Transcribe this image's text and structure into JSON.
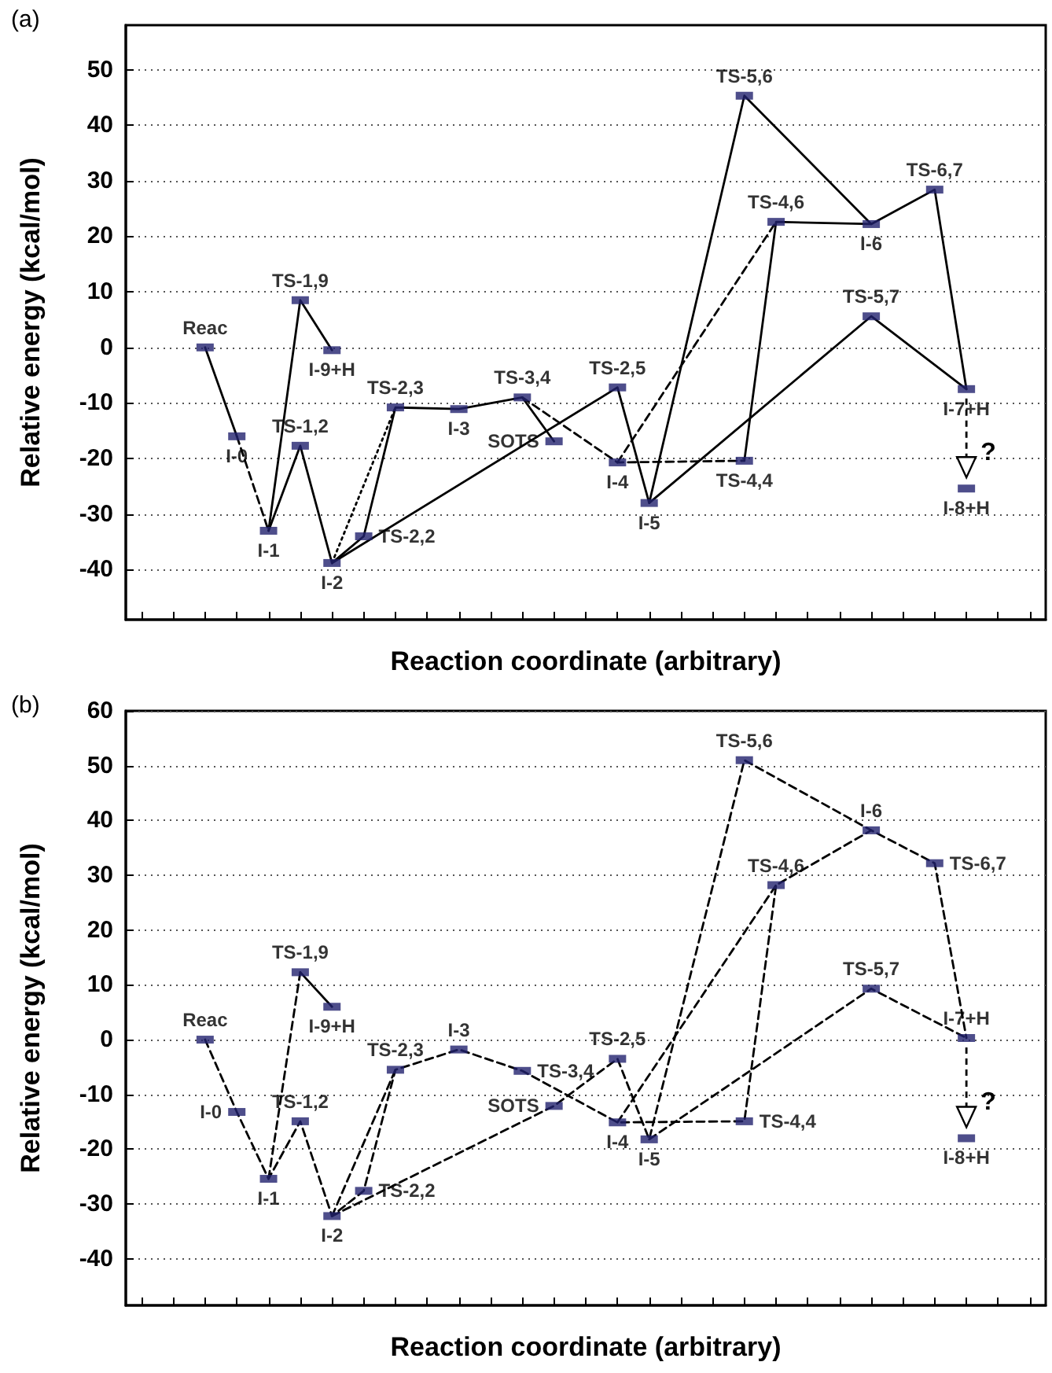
{
  "chart_data": [
    {
      "type": "scatter",
      "title": "(a)",
      "xlabel": "Reaction coordinate (arbitrary)",
      "ylabel": "Relative energy (kcal/mol)",
      "categories": [
        null,
        null,
        null,
        null,
        null,
        null,
        null,
        null,
        null,
        null,
        null,
        null,
        null,
        null,
        null,
        null,
        null,
        null,
        null,
        null,
        null,
        null,
        null,
        null,
        null,
        null,
        null,
        null,
        null
      ],
      "ylim": [
        -49,
        58
      ],
      "yticks": [
        -40,
        -30,
        -20,
        -10,
        0,
        10,
        20,
        30,
        40,
        50
      ],
      "grid": "y",
      "annotations": [
        "?"
      ],
      "series": [
        {
          "color": "#22226e",
          "values": [
            null,
            null,
            0,
            -16,
            -33,
            8.5,
            -0.5,
            -34,
            -10.8,
            null,
            -11.1,
            null,
            -9,
            -16.9,
            null,
            -7.2,
            -28,
            null,
            null,
            45.3,
            22.6,
            null,
            null,
            22.2,
            null,
            28.4,
            -7.5,
            null,
            null
          ],
          "value_labels": [
            null,
            null,
            "Reac",
            "I-0",
            "I-1",
            "TS-1,9",
            "I-9+H",
            "TS-2,2",
            "TS-2,3",
            null,
            "I-3",
            null,
            "TS-3,4",
            "SOTS",
            null,
            "TS-2,5",
            "I-5",
            null,
            null,
            "TS-5,6",
            "TS-4,6",
            null,
            null,
            "I-6",
            null,
            "TS-6,7",
            "I-7+H",
            null,
            null
          ]
        },
        {
          "color": "#22226e",
          "values": [
            null,
            null,
            null,
            null,
            null,
            -17.7,
            -38.8,
            null,
            null,
            null,
            null,
            null,
            null,
            null,
            null,
            -20.7,
            null,
            null,
            null,
            -20.4,
            null,
            null,
            null,
            5.6,
            null,
            null,
            -25.4,
            null,
            null
          ],
          "value_labels": [
            null,
            null,
            null,
            null,
            null,
            "TS-1,2",
            "I-2",
            null,
            null,
            null,
            null,
            null,
            null,
            null,
            null,
            "I-4",
            null,
            null,
            null,
            "TS-4,4",
            null,
            null,
            null,
            "TS-5,7",
            null,
            null,
            "I-8+H",
            null,
            null
          ]
        },
        {
          "type": "line",
          "color": "#000000",
          "line_style": "solid",
          "values": [
            null,
            null,
            0,
            -16,
            null,
            null,
            null,
            null,
            null,
            null,
            null,
            null,
            null,
            null,
            null,
            null,
            null,
            null,
            null,
            null,
            null,
            null,
            null,
            null,
            null,
            null,
            null,
            null,
            null
          ]
        },
        {
          "type": "line",
          "color": "#000000",
          "line_style": "dashed",
          "values": [
            null,
            null,
            null,
            -16,
            -33,
            null,
            null,
            null,
            null,
            null,
            null,
            null,
            null,
            null,
            null,
            null,
            null,
            null,
            null,
            null,
            null,
            null,
            null,
            null,
            null,
            null,
            null,
            null,
            null
          ]
        },
        {
          "type": "line",
          "color": "#000000",
          "line_style": "solid",
          "values": [
            null,
            null,
            null,
            null,
            -33,
            8.5,
            -0.5,
            null,
            null,
            null,
            null,
            null,
            null,
            null,
            null,
            null,
            null,
            null,
            null,
            null,
            null,
            null,
            null,
            null,
            null,
            null,
            null,
            null,
            null
          ]
        },
        {
          "type": "line",
          "color": "#000000",
          "line_style": "solid",
          "values": [
            null,
            null,
            null,
            null,
            -33,
            -17.7,
            -38.8,
            -34,
            -10.8,
            null,
            -11.1,
            null,
            -9,
            -16.9,
            null,
            null,
            null,
            null,
            null,
            null,
            null,
            null,
            null,
            null,
            null,
            null,
            null,
            null,
            null
          ]
        },
        {
          "type": "line",
          "color": "#000000",
          "line_style": "dotted",
          "values": [
            null,
            null,
            null,
            null,
            null,
            null,
            -38.8,
            null,
            -10.8,
            null,
            null,
            null,
            null,
            null,
            null,
            null,
            null,
            null,
            null,
            null,
            null,
            null,
            null,
            null,
            null,
            null,
            null,
            null,
            null
          ]
        },
        {
          "type": "line",
          "color": "#000000",
          "line_style": "solid",
          "values": [
            null,
            null,
            null,
            null,
            null,
            null,
            -38.8,
            null,
            null,
            null,
            null,
            null,
            null,
            null,
            null,
            -7.2,
            -28,
            null,
            null,
            45.3,
            null,
            null,
            null,
            22.2,
            null,
            28.4,
            -7.5,
            null,
            null
          ]
        },
        {
          "type": "line",
          "color": "#000000",
          "line_style": "solid",
          "values": [
            null,
            null,
            null,
            null,
            null,
            null,
            null,
            null,
            null,
            null,
            null,
            null,
            null,
            null,
            null,
            null,
            null,
            null,
            null,
            -20.4,
            22.6,
            null,
            null,
            22.2,
            null,
            null,
            null,
            null,
            null
          ]
        },
        {
          "type": "line",
          "color": "#000000",
          "line_style": "solid",
          "values": [
            null,
            null,
            null,
            null,
            null,
            null,
            null,
            null,
            null,
            null,
            null,
            null,
            null,
            null,
            null,
            null,
            -28,
            null,
            null,
            null,
            null,
            null,
            null,
            5.6,
            null,
            null,
            -7.5,
            null,
            null
          ]
        },
        {
          "type": "line",
          "color": "#000000",
          "line_style": "dashed",
          "values": [
            null,
            null,
            null,
            null,
            null,
            null,
            null,
            null,
            null,
            null,
            null,
            null,
            -9,
            null,
            null,
            -20.7,
            null,
            null,
            null,
            -20.4,
            null,
            null,
            null,
            null,
            null,
            null,
            null,
            null,
            null
          ]
        },
        {
          "type": "line",
          "color": "#000000",
          "line_style": "dashed",
          "values": [
            null,
            null,
            null,
            null,
            null,
            null,
            null,
            null,
            null,
            null,
            null,
            null,
            null,
            null,
            null,
            -20.7,
            null,
            null,
            null,
            null,
            22.6,
            null,
            null,
            null,
            null,
            null,
            null,
            null,
            null
          ]
        }
      ]
    },
    {
      "type": "scatter",
      "title": "(b)",
      "xlabel": "Reaction coordinate (arbitrary)",
      "ylabel": "Relative energy (kcal/mol)",
      "categories": [
        null,
        null,
        null,
        null,
        null,
        null,
        null,
        null,
        null,
        null,
        null,
        null,
        null,
        null,
        null,
        null,
        null,
        null,
        null,
        null,
        null,
        null,
        null,
        null,
        null,
        null,
        null,
        null,
        null
      ],
      "ylim": [
        -48.5,
        60
      ],
      "yticks": [
        -40,
        -30,
        -20,
        -10,
        0,
        10,
        20,
        30,
        40,
        50,
        60
      ],
      "grid": "y",
      "annotations": [
        "?"
      ],
      "series": [
        {
          "color": "#22226e",
          "values": [
            null,
            null,
            0,
            -13.2,
            -25.4,
            12.3,
            6,
            -27.6,
            -5.5,
            null,
            -1.8,
            null,
            -5.7,
            -12.1,
            null,
            -3.5,
            -18.2,
            null,
            null,
            51,
            28.2,
            null,
            null,
            38.2,
            null,
            32.2,
            0.3,
            null,
            null
          ],
          "value_labels": [
            null,
            null,
            "Reac",
            "I-0",
            "I-1",
            "TS-1,9",
            "I-9+H",
            "TS-2,2",
            "TS-2,3",
            null,
            "I-3",
            null,
            "TS-3,4",
            "SOTS",
            null,
            "TS-2,5",
            "I-5",
            null,
            null,
            "TS-5,6",
            "TS-4,6",
            null,
            null,
            "I-6",
            null,
            "TS-6,7",
            "I-7+H",
            null,
            null
          ]
        },
        {
          "color": "#22226e",
          "values": [
            null,
            null,
            null,
            null,
            null,
            -14.9,
            -32.2,
            null,
            null,
            null,
            null,
            null,
            null,
            null,
            null,
            -15.1,
            null,
            null,
            null,
            -14.9,
            null,
            null,
            null,
            9.3,
            null,
            null,
            -18,
            null,
            null
          ],
          "value_labels": [
            null,
            null,
            null,
            null,
            null,
            "TS-1,2",
            "I-2",
            null,
            null,
            null,
            null,
            null,
            null,
            null,
            null,
            "I-4",
            null,
            null,
            null,
            "TS-4,4",
            null,
            null,
            null,
            "TS-5,7",
            null,
            null,
            "I-8+H",
            null,
            null
          ]
        },
        {
          "type": "line",
          "color": "#000000",
          "line_style": "dashed",
          "values": [
            null,
            null,
            0,
            -13.2,
            -25.4,
            -14.9,
            -32.2,
            -27.6,
            -5.5,
            null,
            -1.8,
            null,
            -5.7,
            null,
            null,
            -15.1,
            null,
            null,
            null,
            -14.9,
            28.2,
            null,
            null,
            38.2,
            null,
            32.2,
            0.3,
            null,
            null
          ]
        },
        {
          "type": "line",
          "color": "#000000",
          "line_style": "dashed",
          "values": [
            null,
            null,
            null,
            null,
            -25.4,
            12.3,
            null,
            null,
            null,
            null,
            null,
            null,
            null,
            null,
            null,
            null,
            null,
            null,
            null,
            null,
            null,
            null,
            null,
            null,
            null,
            null,
            null,
            null,
            null
          ]
        },
        {
          "type": "line",
          "color": "#000000",
          "line_style": "solid",
          "values": [
            null,
            null,
            null,
            null,
            null,
            12.3,
            6,
            null,
            null,
            null,
            null,
            null,
            null,
            null,
            null,
            null,
            null,
            null,
            null,
            null,
            null,
            null,
            null,
            null,
            null,
            null,
            null,
            null,
            null
          ]
        },
        {
          "type": "line",
          "color": "#000000",
          "line_style": "dashed",
          "values": [
            null,
            null,
            null,
            null,
            null,
            null,
            -32.2,
            null,
            -5.5,
            null,
            null,
            null,
            null,
            null,
            null,
            null,
            null,
            null,
            null,
            null,
            null,
            null,
            null,
            null,
            null,
            null,
            null,
            null,
            null
          ]
        },
        {
          "type": "line",
          "color": "#000000",
          "line_style": "dashed",
          "values": [
            null,
            null,
            null,
            null,
            null,
            null,
            -32.2,
            null,
            null,
            null,
            null,
            null,
            null,
            -12.1,
            null,
            -3.5,
            -18.2,
            null,
            null,
            51,
            null,
            null,
            null,
            38.2,
            null,
            null,
            null,
            null,
            null
          ]
        },
        {
          "type": "line",
          "color": "#000000",
          "line_style": "dashed",
          "values": [
            null,
            null,
            null,
            null,
            null,
            null,
            null,
            null,
            null,
            null,
            null,
            null,
            null,
            null,
            null,
            -15.1,
            null,
            null,
            null,
            null,
            28.2,
            null,
            null,
            null,
            null,
            null,
            null,
            null,
            null
          ]
        },
        {
          "type": "line",
          "color": "#000000",
          "line_style": "dashed",
          "values": [
            null,
            null,
            null,
            null,
            null,
            null,
            null,
            null,
            null,
            null,
            null,
            null,
            null,
            null,
            null,
            null,
            -18.2,
            null,
            null,
            null,
            null,
            null,
            null,
            9.3,
            null,
            null,
            0.3,
            null,
            null
          ]
        }
      ]
    }
  ]
}
